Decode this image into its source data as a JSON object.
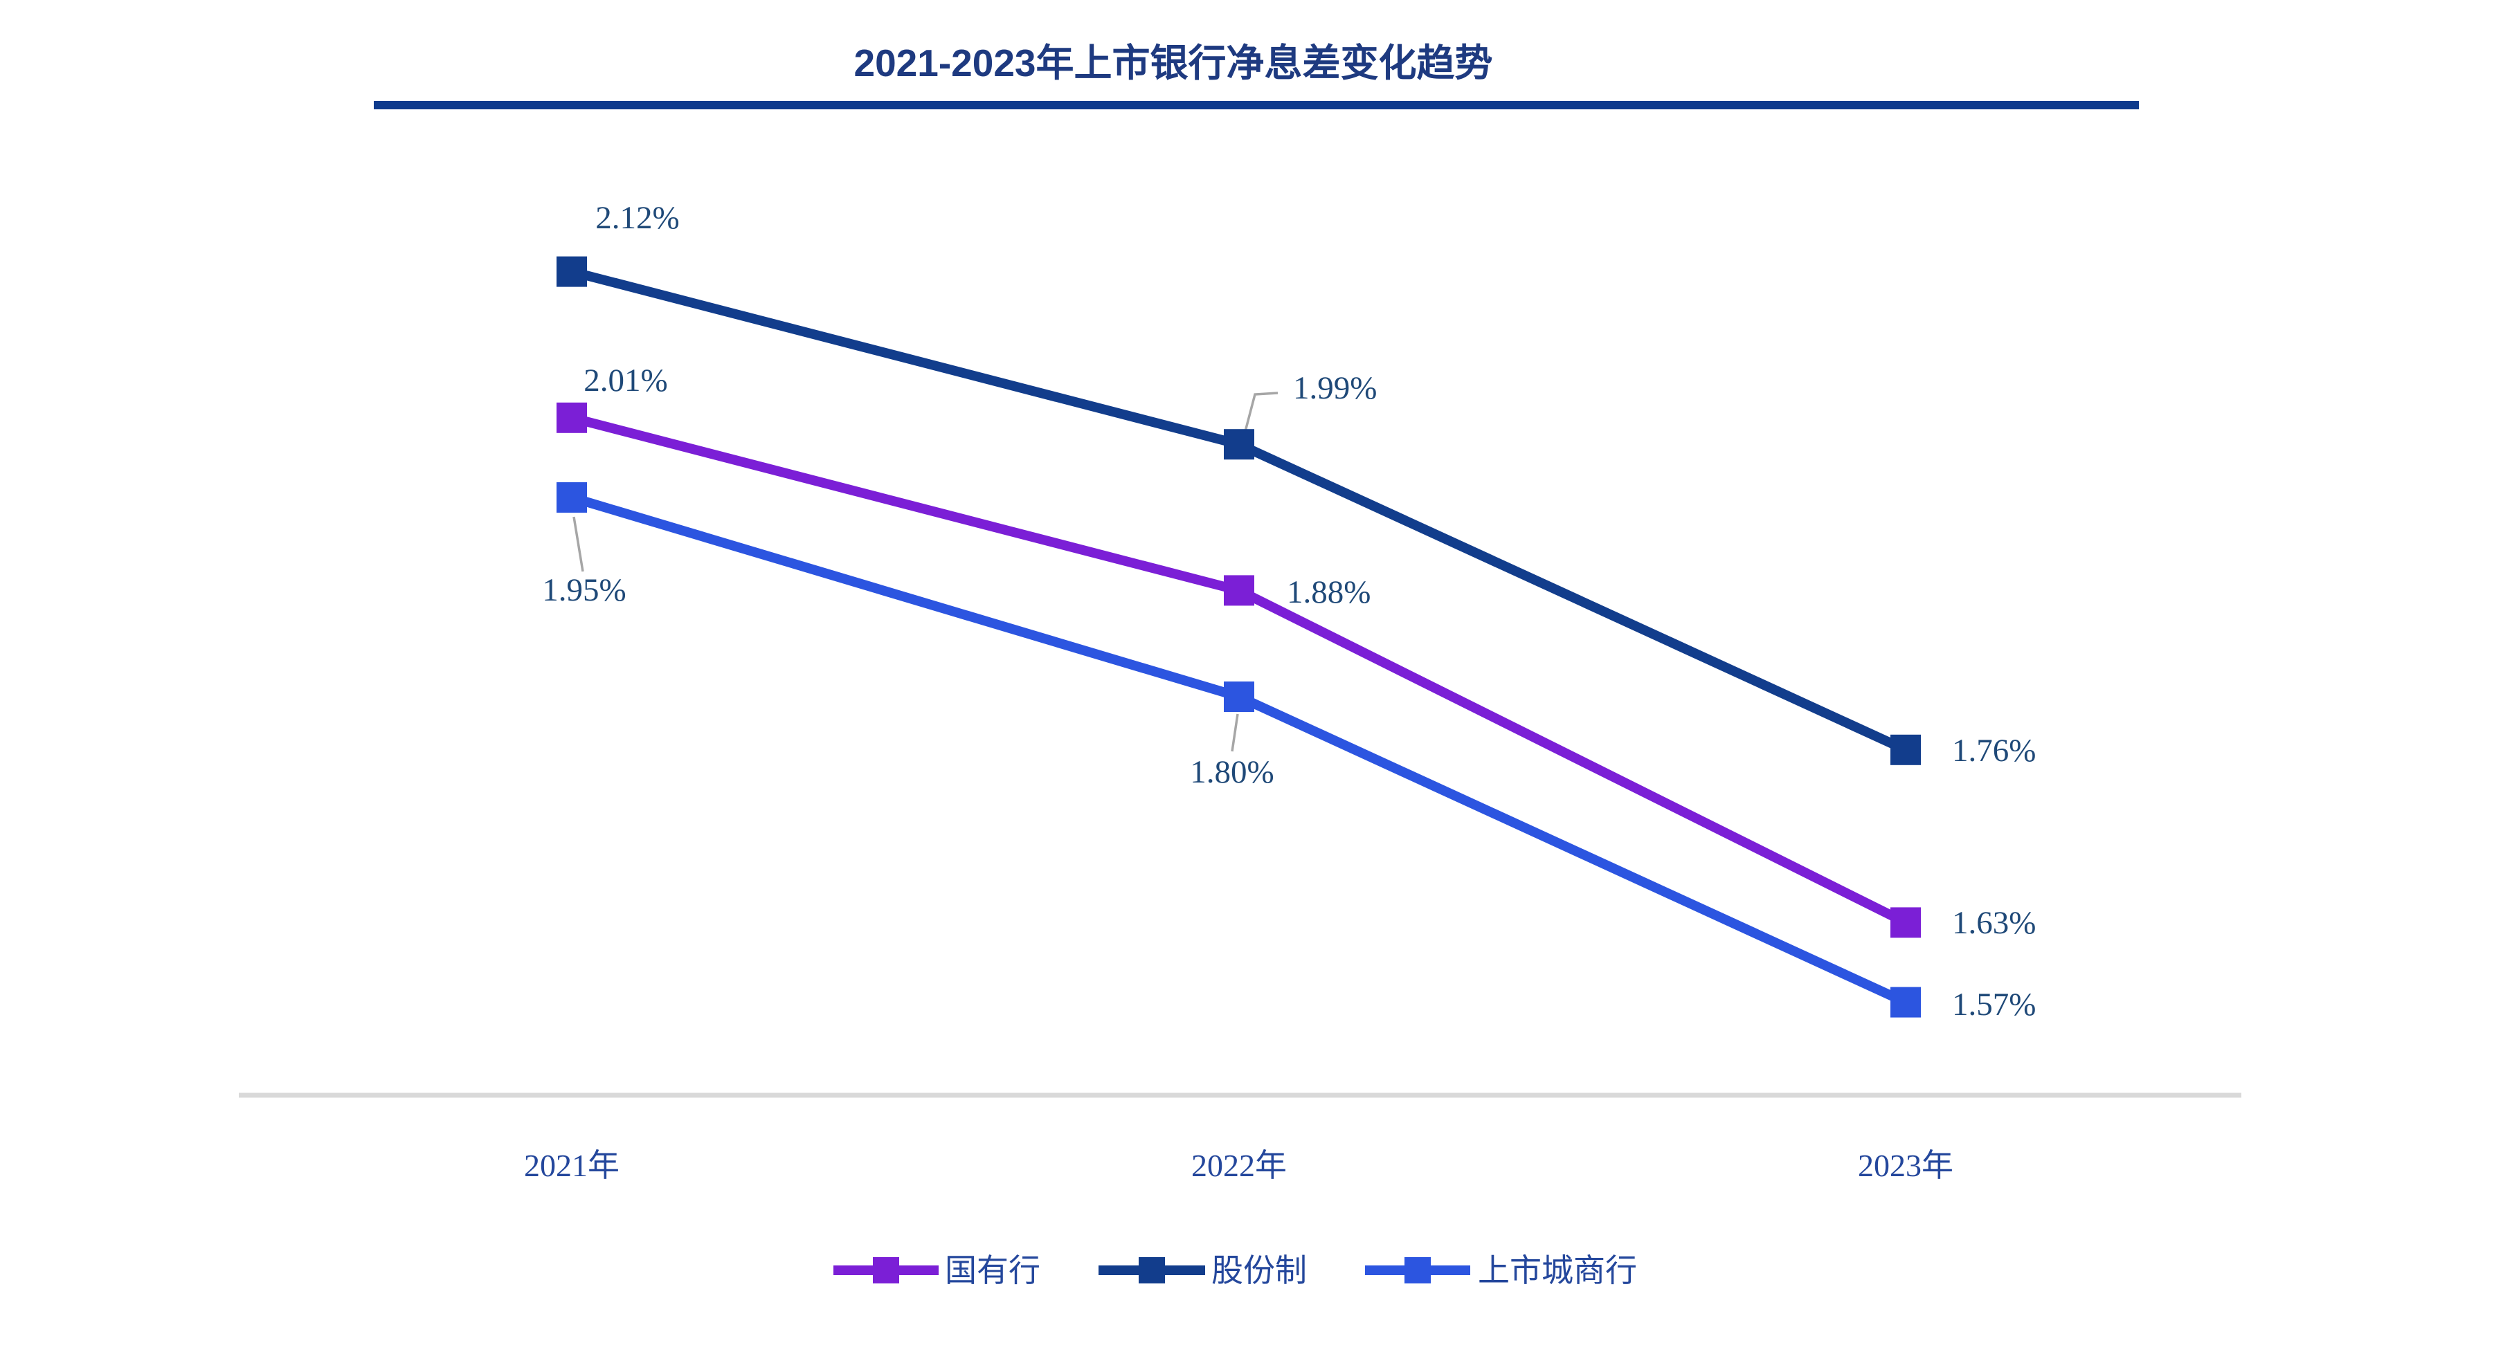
{
  "page": {
    "background": "#FFFFFF"
  },
  "chart_data": {
    "type": "line",
    "title": "2021-2023年上市银行净息差变化趋势",
    "title_color": "#1E3A80",
    "title_rule_color": "#0E3A8C",
    "categories": [
      "2021年",
      "2022年",
      "2023年"
    ],
    "x_axis_label_color": "#24479C",
    "axis_line_color": "#D9D9D9",
    "value_label_color": "#1F4978",
    "leader_line_color": "#A6A6A6",
    "legend_position": "bottom",
    "legend_label_color": "#24479C",
    "grid": false,
    "ylim": [
      1.5,
      2.2
    ],
    "unit": "%",
    "marker": "square",
    "series": [
      {
        "name": "国有行",
        "color": "#7B1FD6",
        "values": [
          2.01,
          1.88,
          1.63
        ],
        "labels": [
          "2.01%",
          "1.88%",
          "1.63%"
        ]
      },
      {
        "name": "股份制",
        "color": "#123D8C",
        "values": [
          2.12,
          1.99,
          1.76
        ],
        "labels": [
          "2.12%",
          "1.99%",
          "1.76%"
        ]
      },
      {
        "name": "上市城商行",
        "color": "#2C55E0",
        "values": [
          1.95,
          1.8,
          1.57
        ],
        "labels": [
          "1.95%",
          "1.80%",
          "1.57%"
        ]
      }
    ]
  }
}
